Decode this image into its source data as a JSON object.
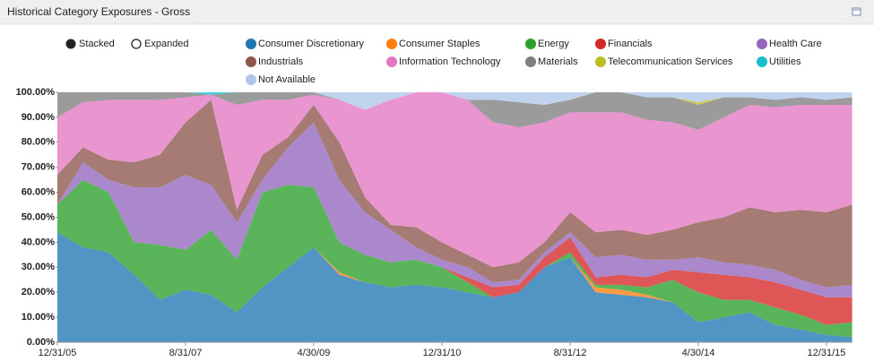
{
  "chart_data": {
    "type": "stacked_area",
    "title": "Historical Category Exposures - Gross",
    "modes": [
      "Stacked",
      "Expanded"
    ],
    "categories": [
      "12/31/05",
      null,
      null,
      null,
      null,
      "8/31/07",
      null,
      null,
      null,
      null,
      "4/30/09",
      null,
      null,
      null,
      null,
      "12/31/10",
      null,
      null,
      null,
      null,
      "8/31/12",
      null,
      null,
      null,
      null,
      "4/30/14",
      null,
      null,
      null,
      null,
      "12/31/15",
      null
    ],
    "ylim": [
      0,
      100
    ],
    "yticks": [
      {
        "value": 0,
        "label": "0.00%"
      },
      {
        "value": 10,
        "label": "10.00%"
      },
      {
        "value": 20,
        "label": "20.00%"
      },
      {
        "value": 30,
        "label": "30.00%"
      },
      {
        "value": 40,
        "label": "40.00%"
      },
      {
        "value": 50,
        "label": "50.00%"
      },
      {
        "value": 60,
        "label": "60.00%"
      },
      {
        "value": 70,
        "label": "70.00%"
      },
      {
        "value": 80,
        "label": "80.00%"
      },
      {
        "value": 90,
        "label": "90.00%"
      },
      {
        "value": 100,
        "label": "100.00%"
      }
    ],
    "series": [
      {
        "name": "Consumer Discretionary",
        "color": "#1f77b4",
        "values": [
          44,
          38,
          36,
          27,
          17,
          21,
          19,
          12,
          22,
          30,
          38,
          27,
          24,
          22,
          23,
          22,
          20,
          18,
          20,
          30,
          34,
          20,
          19,
          18,
          16,
          8,
          10,
          12,
          7,
          5,
          3,
          2
        ]
      },
      {
        "name": "Consumer Staples",
        "color": "#ff7f0e",
        "values": [
          0,
          0,
          0,
          0,
          0,
          0,
          0,
          0,
          0,
          0,
          0,
          1,
          0,
          0,
          0,
          0,
          0,
          0,
          0,
          0,
          0,
          2,
          2,
          1,
          0,
          0,
          0,
          0,
          0,
          0,
          0,
          0
        ]
      },
      {
        "name": "Energy",
        "color": "#2ca02c",
        "values": [
          11,
          27,
          24,
          13,
          22,
          16,
          26,
          21,
          38,
          33,
          24,
          12,
          11,
          10,
          10,
          8,
          4,
          0,
          0,
          0,
          2,
          1,
          2,
          3,
          9,
          12,
          7,
          5,
          7,
          6,
          4,
          6
        ]
      },
      {
        "name": "Financials",
        "color": "#d62728",
        "values": [
          0,
          0,
          0,
          0,
          0,
          0,
          0,
          0,
          0,
          0,
          0,
          0,
          0,
          0,
          0,
          0,
          2,
          4,
          3,
          4,
          6,
          3,
          4,
          4,
          4,
          8,
          10,
          9,
          10,
          10,
          11,
          10
        ]
      },
      {
        "name": "Health Care",
        "color": "#9467bd",
        "values": [
          0,
          7,
          5,
          22,
          23,
          30,
          18,
          15,
          5,
          15,
          26,
          25,
          17,
          13,
          5,
          3,
          4,
          2,
          2,
          2,
          2,
          8,
          8,
          7,
          4,
          6,
          5,
          5,
          5,
          4,
          4,
          5
        ]
      },
      {
        "name": "Industrials",
        "color": "#8c564b",
        "values": [
          12,
          6,
          8,
          10,
          13,
          21,
          34,
          5,
          10,
          4,
          7,
          15,
          6,
          2,
          8,
          7,
          5,
          6,
          7,
          4,
          8,
          10,
          10,
          10,
          12,
          14,
          18,
          23,
          23,
          28,
          30,
          32
        ]
      },
      {
        "name": "Information Technology",
        "color": "#e377c2",
        "values": [
          23,
          18,
          24,
          25,
          22,
          10,
          2,
          42,
          22,
          15,
          4,
          17,
          35,
          50,
          54,
          60,
          62,
          58,
          54,
          48,
          40,
          48,
          47,
          46,
          43,
          37,
          40,
          41,
          42,
          42,
          43,
          40
        ]
      },
      {
        "name": "Materials",
        "color": "#7f7f7f",
        "values": [
          10,
          4,
          3,
          3,
          3,
          2,
          0,
          5,
          3,
          3,
          1,
          0,
          0,
          0,
          0,
          0,
          0,
          9,
          10,
          7,
          5,
          8,
          8,
          9,
          10,
          10,
          8,
          3,
          3,
          3,
          2,
          3
        ]
      },
      {
        "name": "Telecommunication Services",
        "color": "#bcbd22",
        "values": [
          0,
          0,
          0,
          0,
          0,
          0,
          0,
          0,
          0,
          0,
          0,
          0,
          0,
          0,
          0,
          0,
          0,
          0,
          0,
          0,
          0,
          0,
          0,
          0,
          0,
          1,
          0,
          0,
          0,
          0,
          0,
          0
        ]
      },
      {
        "name": "Utilities",
        "color": "#17becf",
        "values": [
          0,
          0,
          0,
          0,
          0,
          0,
          1,
          0,
          0,
          0,
          0,
          0,
          0,
          0,
          0,
          0,
          0,
          0,
          0,
          0,
          0,
          0,
          0,
          0,
          0,
          0,
          0,
          0,
          0,
          0,
          0,
          0
        ]
      },
      {
        "name": "Not Available",
        "color": "#aec7e8",
        "values": [
          0,
          0,
          0,
          0,
          0,
          0,
          0,
          0,
          0,
          0,
          0,
          3,
          7,
          3,
          0,
          0,
          3,
          3,
          4,
          5,
          3,
          0,
          0,
          2,
          2,
          4,
          2,
          2,
          3,
          2,
          3,
          2
        ]
      }
    ]
  }
}
